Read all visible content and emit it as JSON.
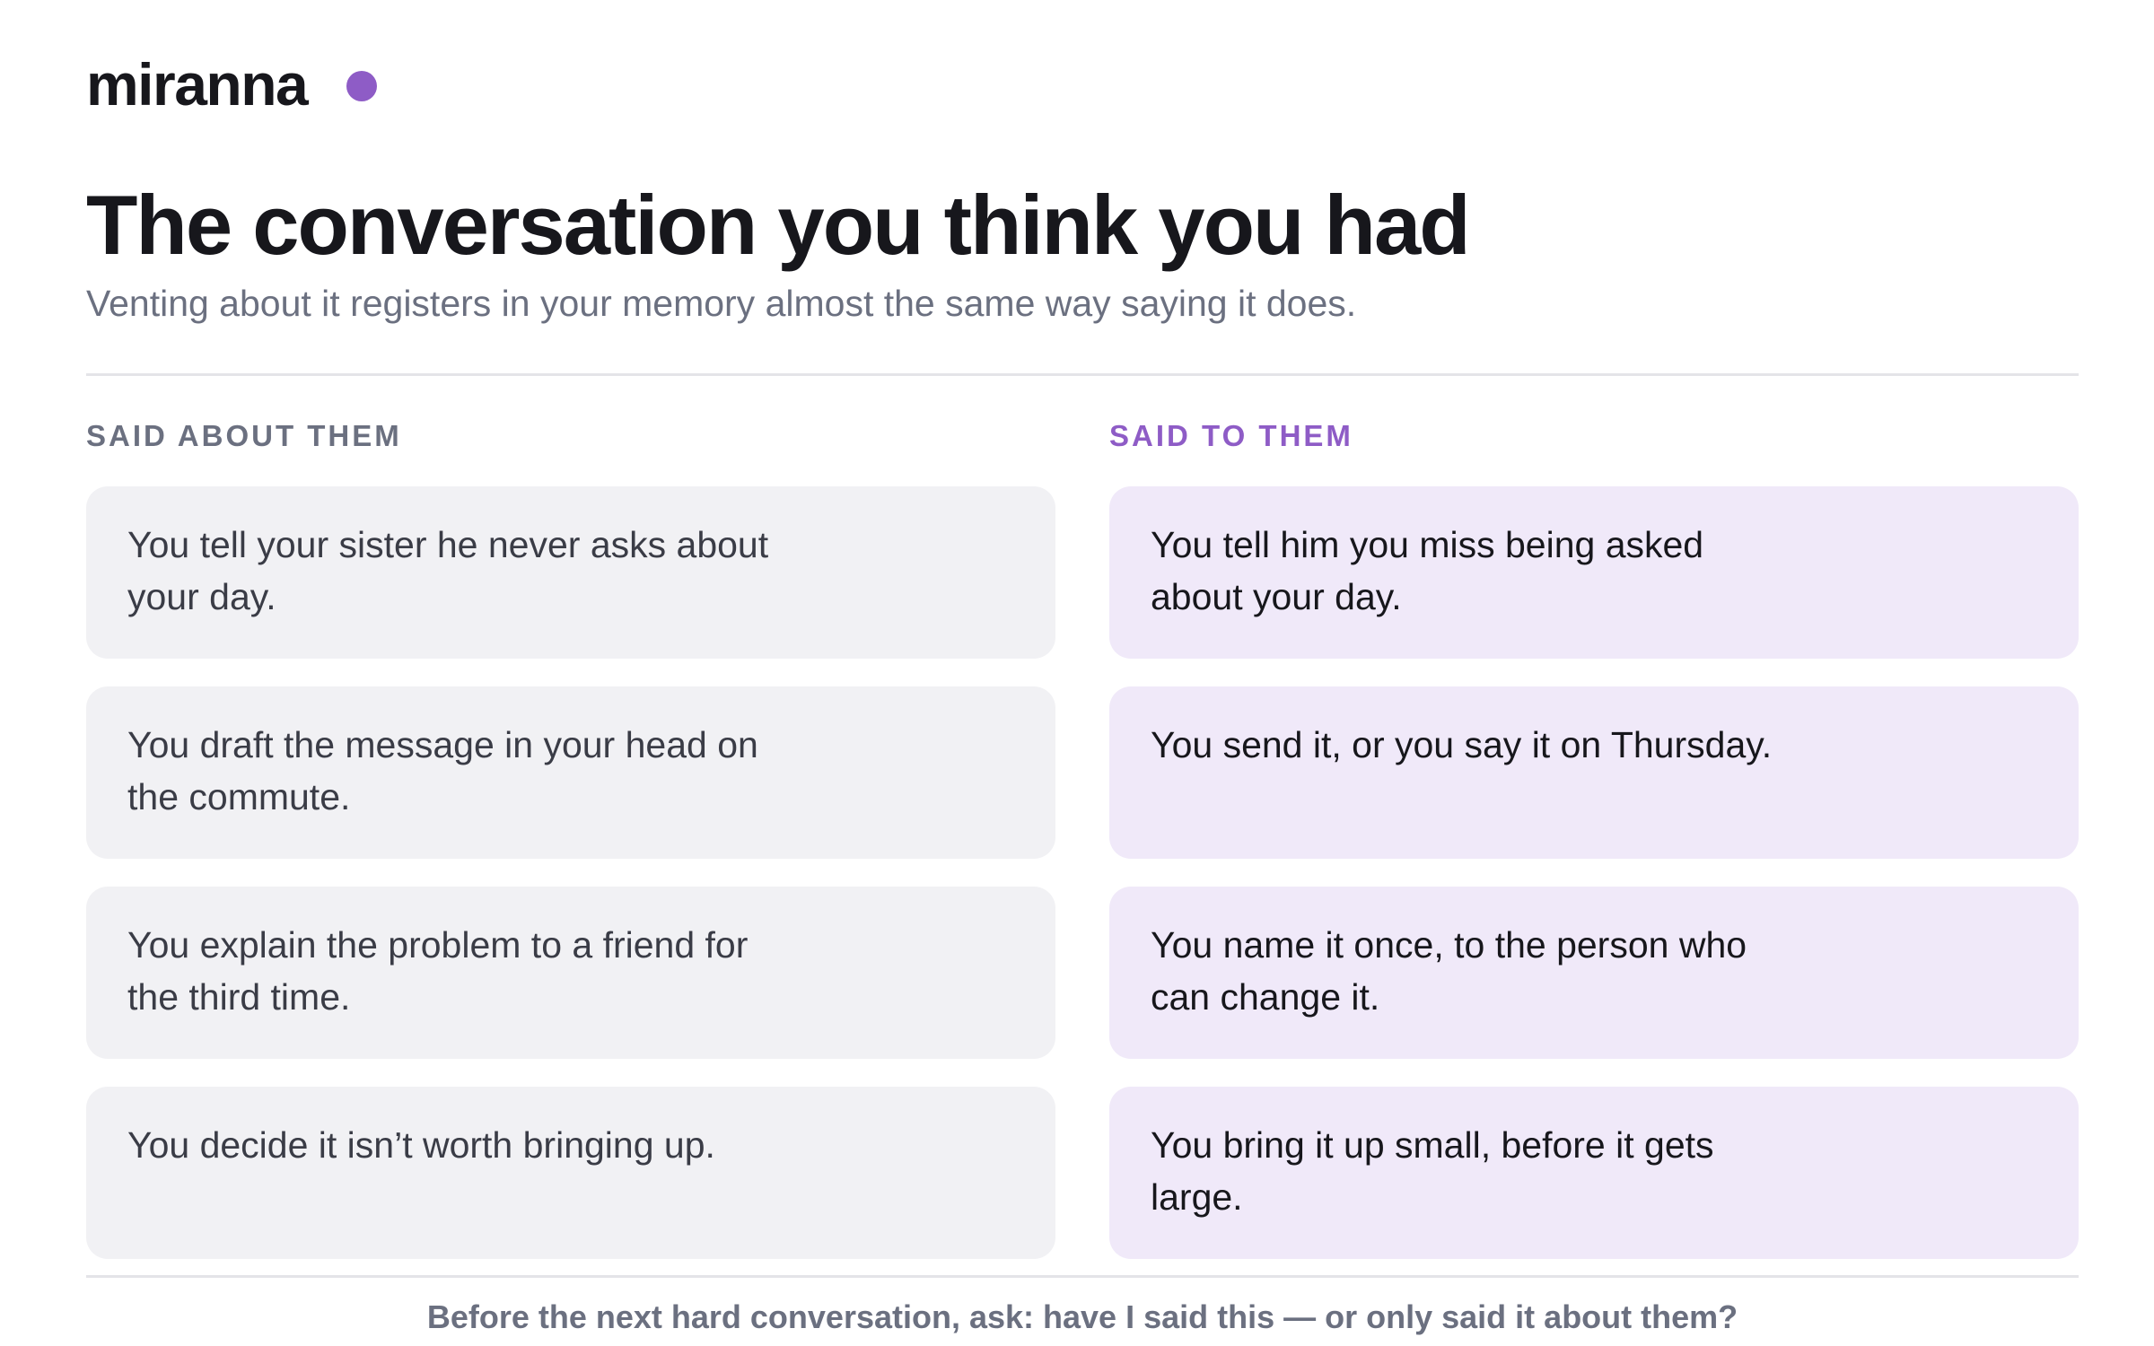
{
  "brand": {
    "name": "miranna",
    "dot_color": "#8e5cc6"
  },
  "header": {
    "title": "The conversation you think you had",
    "subtitle": "Venting about it registers in your memory almost the same way saying it does."
  },
  "columns": {
    "about": {
      "heading": "SAID ABOUT THEM",
      "heading_color": "#6b7080",
      "items": [
        "You tell your sister he never asks about your day.",
        "You draft the message in your head on the commute.",
        "You explain the problem to a friend for the third time.",
        "You decide it isn’t worth bringing up."
      ]
    },
    "to": {
      "heading": "SAID TO THEM",
      "heading_color": "#8e5cc6",
      "items": [
        "You tell him you miss being asked about your day.",
        "You send it, or you say it on Thursday.",
        "You name it once, to the person who can change it.",
        "You bring it up small, before it gets large."
      ]
    }
  },
  "footer": {
    "text": "Before the next hard conversation, ask: have I said this — or only said it about them?"
  }
}
